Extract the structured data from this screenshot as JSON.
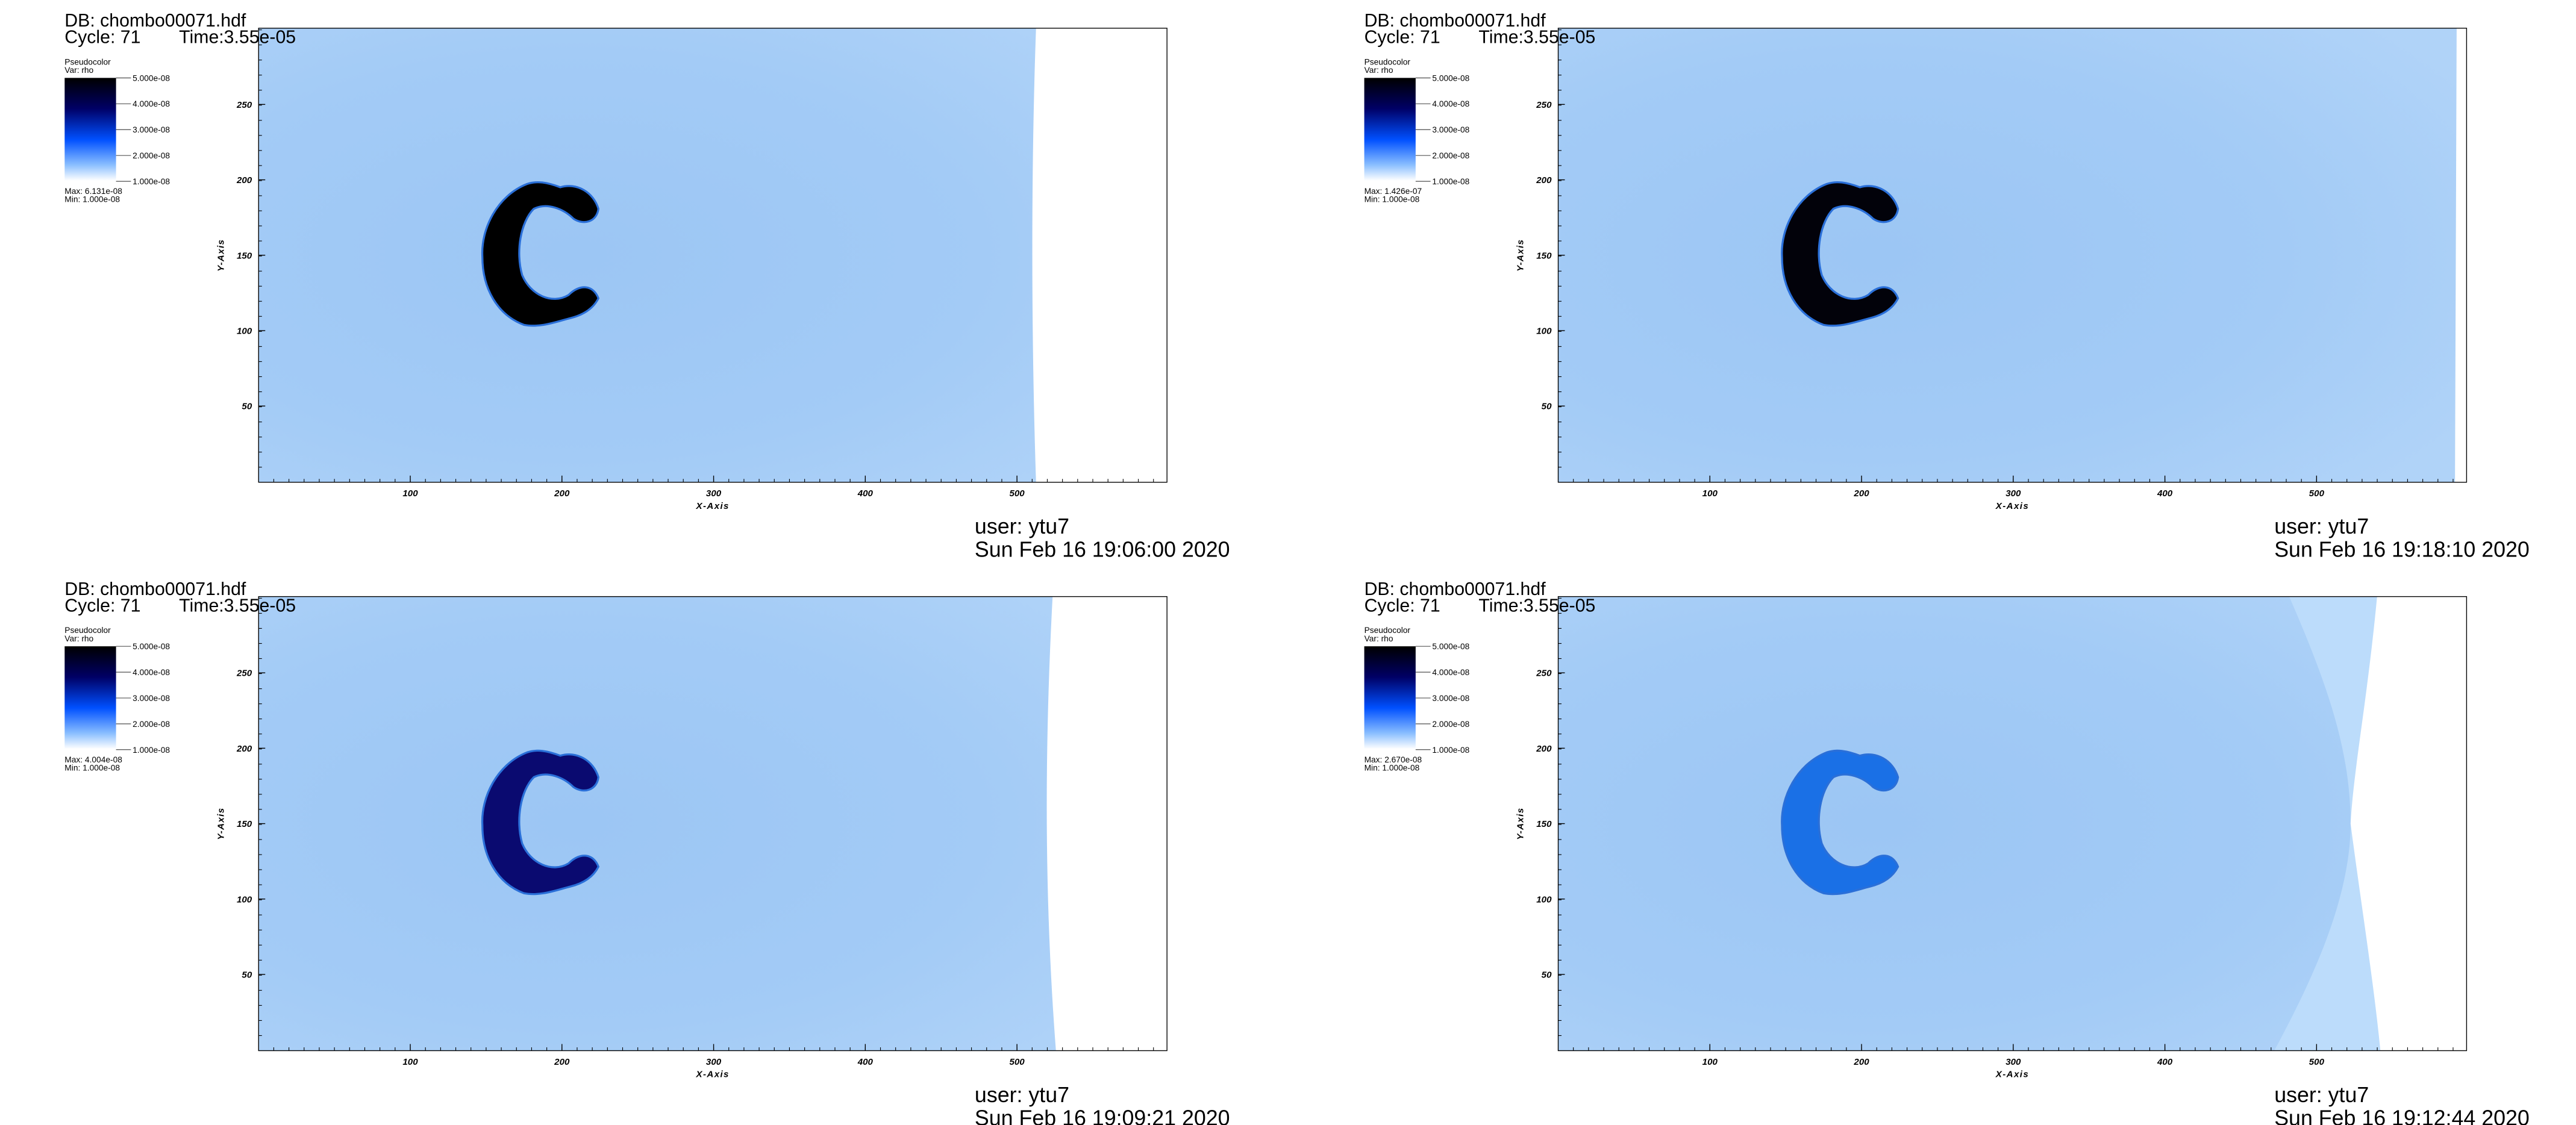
{
  "panels": [
    {
      "db": "DB: chombo00071.hdf",
      "cycle": "Cycle: 71",
      "time": "Time:3.55e-05",
      "plot": "Pseudocolor",
      "var": "Var: rho",
      "colorbar_ticks": [
        "5.000e-08",
        "4.000e-08",
        "3.000e-08",
        "2.000e-08",
        "1.000e-08"
      ],
      "max": "Max: 6.131e-08",
      "min": "Min: 1.000e-08",
      "x_ticks": [
        "100",
        "200",
        "300",
        "400",
        "500"
      ],
      "y_ticks": [
        "250",
        "200",
        "150",
        "100",
        "50"
      ],
      "x_label": "X-Axis",
      "y_label": "Y-Axis",
      "user": "user: ytu7",
      "date": "Sun Feb 16 19:06:00 2020"
    },
    {
      "db": "DB: chombo00071.hdf",
      "cycle": "Cycle: 71",
      "time": "Time:3.55e-05",
      "plot": "Pseudocolor",
      "var": "Var: rho",
      "colorbar_ticks": [
        "5.000e-08",
        "4.000e-08",
        "3.000e-08",
        "2.000e-08",
        "1.000e-08"
      ],
      "max": "Max: 1.426e-07",
      "min": "Min: 1.000e-08",
      "x_ticks": [
        "100",
        "200",
        "300",
        "400",
        "500"
      ],
      "y_ticks": [
        "250",
        "200",
        "150",
        "100",
        "50"
      ],
      "x_label": "X-Axis",
      "y_label": "Y-Axis",
      "user": "user: ytu7",
      "date": "Sun Feb 16 19:18:10 2020"
    },
    {
      "db": "DB: chombo00071.hdf",
      "cycle": "Cycle: 71",
      "time": "Time:3.55e-05",
      "plot": "Pseudocolor",
      "var": "Var: rho",
      "colorbar_ticks": [
        "5.000e-08",
        "4.000e-08",
        "3.000e-08",
        "2.000e-08",
        "1.000e-08"
      ],
      "max": "Max: 4.004e-08",
      "min": "Min: 1.000e-08",
      "x_ticks": [
        "100",
        "200",
        "300",
        "400",
        "500"
      ],
      "y_ticks": [
        "250",
        "200",
        "150",
        "100",
        "50"
      ],
      "x_label": "X-Axis",
      "y_label": "Y-Axis",
      "user": "user: ytu7",
      "date": "Sun Feb 16 19:09:21 2020"
    },
    {
      "db": "DB: chombo00071.hdf",
      "cycle": "Cycle: 71",
      "time": "Time:3.55e-05",
      "plot": "Pseudocolor",
      "var": "Var: rho",
      "colorbar_ticks": [
        "5.000e-08",
        "4.000e-08",
        "3.000e-08",
        "2.000e-08",
        "1.000e-08"
      ],
      "max": "Max: 2.670e-08",
      "min": "Min: 1.000e-08",
      "x_ticks": [
        "100",
        "200",
        "300",
        "400",
        "500"
      ],
      "y_ticks": [
        "250",
        "200",
        "150",
        "100",
        "50"
      ],
      "x_label": "X-Axis",
      "y_label": "Y-Axis",
      "user": "user: ytu7",
      "date": "Sun Feb 16 19:12:44 2020"
    }
  ]
}
